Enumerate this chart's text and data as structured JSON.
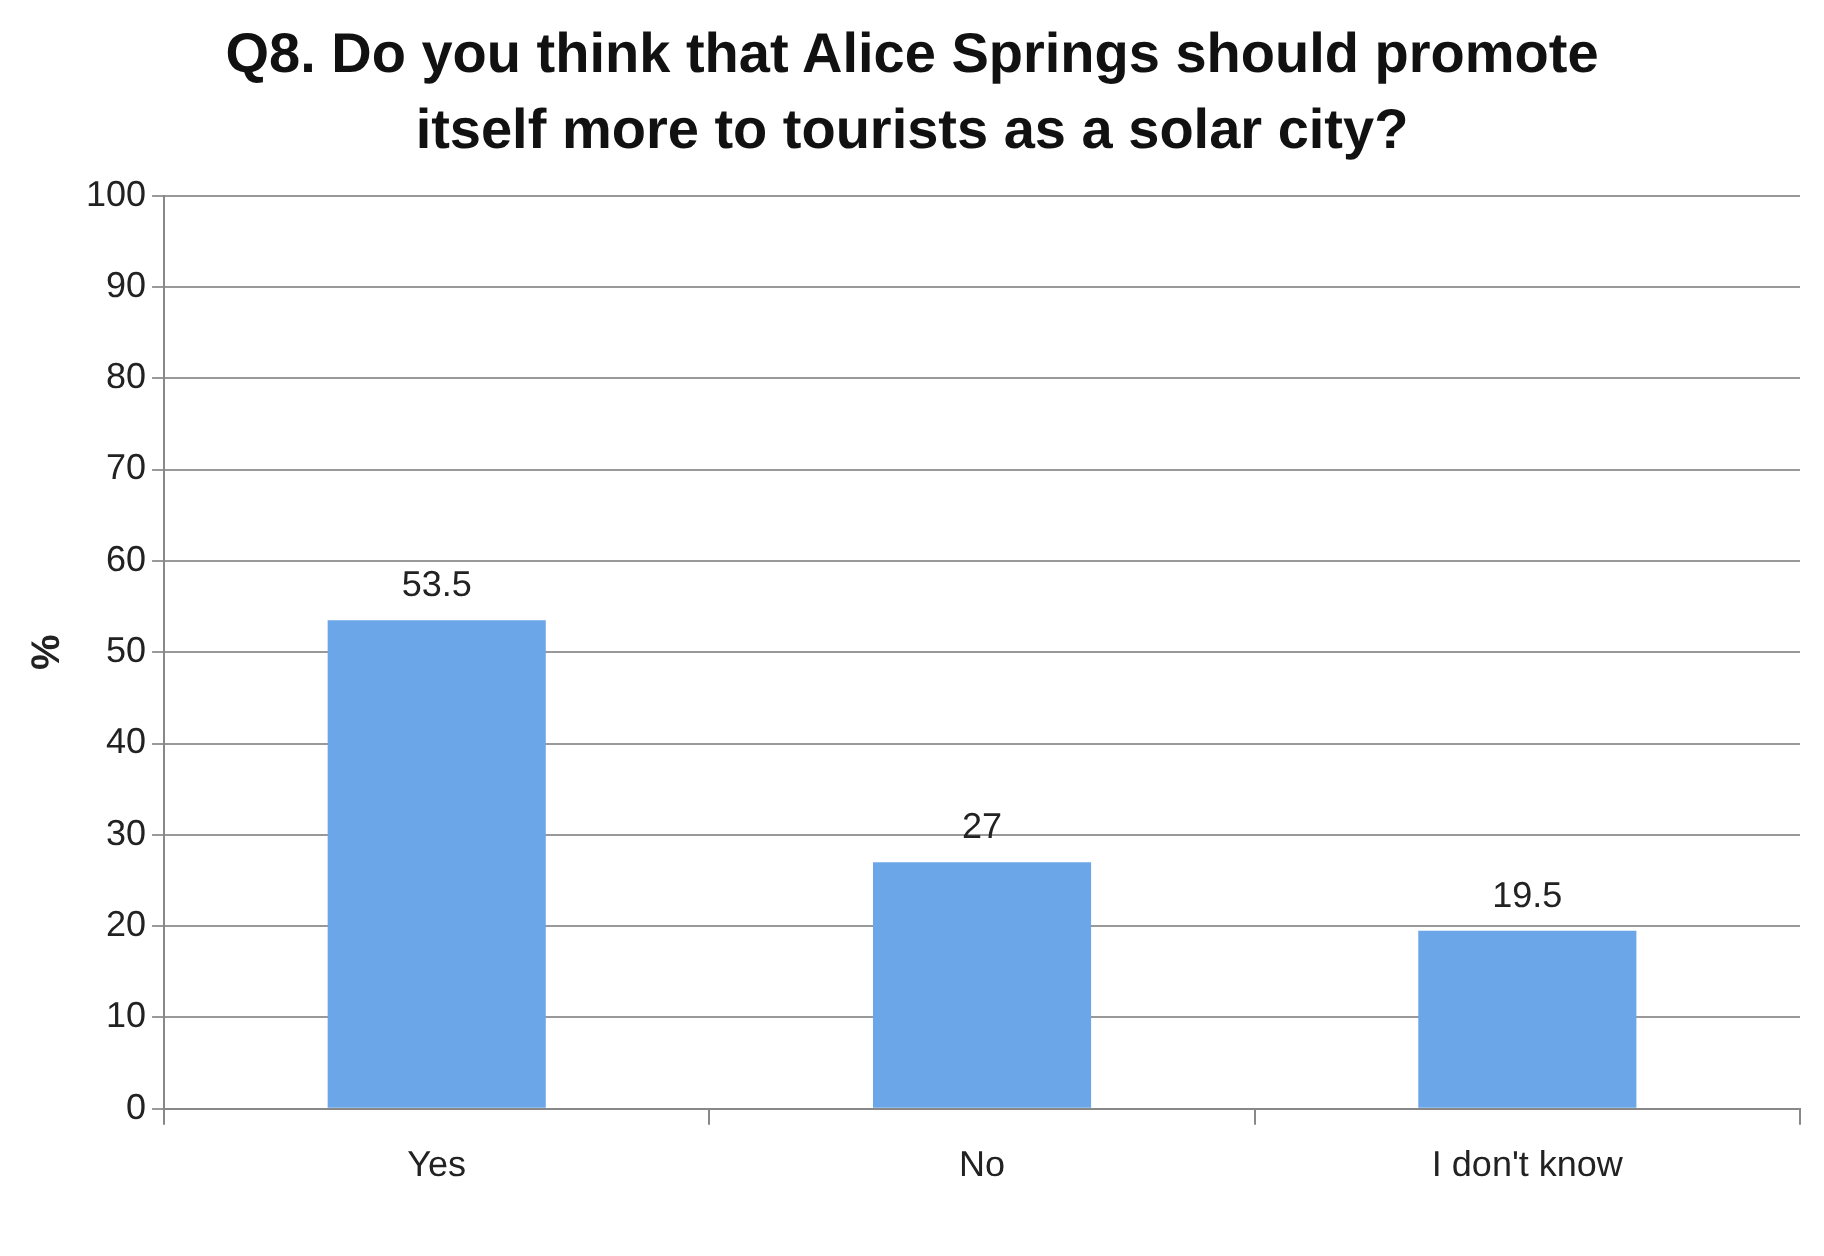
{
  "chart_data": {
    "type": "bar",
    "title": "Q8. Do you think that Alice Springs should promote itself more to tourists as a solar city?",
    "ylabel": "%",
    "categories": [
      "Yes",
      "No",
      "I don't know"
    ],
    "values": [
      53.5,
      27,
      19.5
    ],
    "color": "#6aa6e8",
    "ylim": [
      0,
      100
    ],
    "yticks": [
      0,
      10,
      20,
      30,
      40,
      50,
      60,
      70,
      80,
      90,
      100
    ],
    "grid": "y",
    "data_labels": true
  }
}
